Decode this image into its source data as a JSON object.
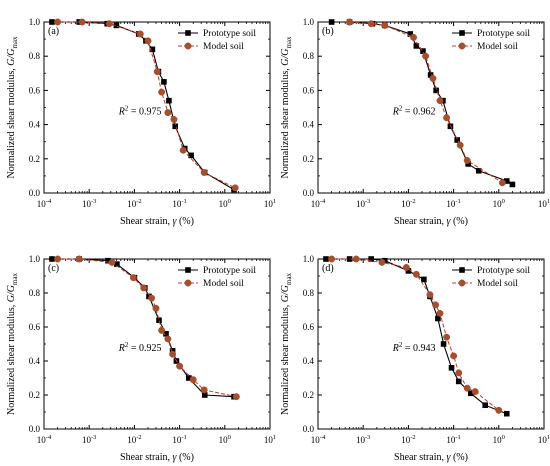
{
  "colors": {
    "prototype": "#000000",
    "model_fill": "#a0522d",
    "model_line": "#c0392b"
  },
  "chart_data": [
    {
      "type": "line",
      "panel_label": "(a)",
      "xscale": "log",
      "xlim": [
        0.0001,
        10
      ],
      "ylim": [
        0,
        1.0
      ],
      "x_ticks": [
        "10",
        "-4",
        "10",
        "-3",
        "10",
        "-2",
        "10",
        "-1",
        "10",
        "0",
        "10",
        "1"
      ],
      "y_ticks": [
        "0.0",
        "0.2",
        "0.4",
        "0.6",
        "0.8",
        "1.0"
      ],
      "xlabel": {
        "main": "Shear strain, ",
        "sym": "γ",
        "unit": " (%)"
      },
      "ylabel": {
        "main": "Normalized shear modulus, ",
        "sym": "G/G",
        "sub": "max"
      },
      "r2": {
        "sym": "R",
        "sup": "2",
        "text": " = 0.975"
      },
      "legend": {
        "position": "top-right",
        "entries": [
          "Prototype soil",
          "Model soil"
        ]
      },
      "series": [
        {
          "name": "Prototype soil",
          "marker": "square",
          "x": [
            0.00015,
            0.0006,
            0.0025,
            0.004,
            0.0125,
            0.018,
            0.025,
            0.034,
            0.045,
            0.058,
            0.08,
            0.13,
            0.18,
            0.36,
            1.6
          ],
          "y": [
            1.0,
            1.0,
            0.99,
            0.98,
            0.93,
            0.89,
            0.84,
            0.71,
            0.65,
            0.54,
            0.39,
            0.26,
            0.22,
            0.12,
            0.02
          ]
        },
        {
          "name": "Model soil",
          "marker": "circle",
          "x": [
            0.0002,
            0.0007,
            0.0028,
            0.0135,
            0.02,
            0.032,
            0.04,
            0.055,
            0.075,
            0.12,
            0.35,
            1.7
          ],
          "y": [
            1.0,
            1.0,
            0.99,
            0.93,
            0.89,
            0.71,
            0.59,
            0.47,
            0.43,
            0.25,
            0.12,
            0.03
          ]
        }
      ]
    },
    {
      "type": "line",
      "panel_label": "(b)",
      "xscale": "log",
      "xlim": [
        0.0001,
        10
      ],
      "ylim": [
        0,
        1.0
      ],
      "x_ticks": [
        "10",
        "-4",
        "10",
        "-3",
        "10",
        "-2",
        "10",
        "-1",
        "10",
        "0",
        "10",
        "1"
      ],
      "y_ticks": [
        "0.0",
        "0.2",
        "0.4",
        "0.6",
        "0.8",
        "1.0"
      ],
      "xlabel": {
        "main": "Shear strain, ",
        "sym": "γ",
        "unit": " (%)"
      },
      "ylabel": {
        "main": "Normalized shear modulus, ",
        "sym": "G/G",
        "sub": "max"
      },
      "r2": {
        "sym": "R",
        "sup": "2",
        "text": " = 0.962"
      },
      "legend": {
        "position": "top-right",
        "entries": [
          "Prototype soil",
          "Model soil"
        ]
      },
      "series": [
        {
          "name": "Prototype soil",
          "marker": "square",
          "x": [
            0.0002,
            0.0005,
            0.0016,
            0.003,
            0.011,
            0.015,
            0.021,
            0.031,
            0.041,
            0.058,
            0.085,
            0.12,
            0.21,
            0.36,
            1.5,
            2.0
          ],
          "y": [
            1.0,
            1.0,
            0.99,
            0.98,
            0.93,
            0.86,
            0.83,
            0.69,
            0.6,
            0.54,
            0.39,
            0.31,
            0.17,
            0.13,
            0.07,
            0.05
          ]
        },
        {
          "name": "Model soil",
          "marker": "circle",
          "x": [
            0.0005,
            0.0015,
            0.003,
            0.013,
            0.024,
            0.035,
            0.05,
            0.07,
            0.14,
            0.2,
            1.2
          ],
          "y": [
            1.0,
            0.99,
            0.98,
            0.91,
            0.8,
            0.67,
            0.54,
            0.44,
            0.28,
            0.19,
            0.06
          ]
        }
      ]
    },
    {
      "type": "line",
      "panel_label": "(c)",
      "xscale": "log",
      "xlim": [
        0.0001,
        10
      ],
      "ylim": [
        0,
        1.0
      ],
      "x_ticks": [
        "10",
        "-4",
        "10",
        "-3",
        "10",
        "-2",
        "10",
        "-1",
        "10",
        "0",
        "10",
        "1"
      ],
      "y_ticks": [
        "0.0",
        "0.2",
        "0.4",
        "0.6",
        "0.8",
        "1.0"
      ],
      "xlabel": {
        "main": "Shear strain, ",
        "sym": "γ",
        "unit": " (%)"
      },
      "ylabel": {
        "main": "Normalized shear modulus, ",
        "sym": "G/G",
        "sub": "max"
      },
      "r2": {
        "sym": "R",
        "sup": "2",
        "text": " = 0.925"
      },
      "legend": {
        "position": "top-right",
        "entries": [
          "Prototype soil",
          "Model soil"
        ]
      },
      "series": [
        {
          "name": "Prototype soil",
          "marker": "square",
          "x": [
            0.00015,
            0.0006,
            0.0026,
            0.0041,
            0.01,
            0.017,
            0.021,
            0.035,
            0.05,
            0.07,
            0.085,
            0.16,
            0.36,
            1.6
          ],
          "y": [
            1.0,
            1.0,
            0.99,
            0.97,
            0.89,
            0.83,
            0.78,
            0.64,
            0.56,
            0.46,
            0.4,
            0.3,
            0.2,
            0.19
          ]
        },
        {
          "name": "Model soil",
          "marker": "circle",
          "x": [
            0.0002,
            0.0006,
            0.0032,
            0.0095,
            0.016,
            0.024,
            0.03,
            0.04,
            0.055,
            0.07,
            0.1,
            0.2,
            0.35,
            1.8
          ],
          "y": [
            1.0,
            1.0,
            0.98,
            0.89,
            0.83,
            0.77,
            0.71,
            0.58,
            0.53,
            0.44,
            0.37,
            0.29,
            0.23,
            0.19
          ]
        }
      ]
    },
    {
      "type": "line",
      "panel_label": "(d)",
      "xscale": "log",
      "xlim": [
        0.0001,
        10
      ],
      "ylim": [
        0,
        1.0
      ],
      "x_ticks": [
        "10",
        "-4",
        "10",
        "-3",
        "10",
        "-2",
        "10",
        "-1",
        "10",
        "0",
        "10",
        "1"
      ],
      "y_ticks": [
        "0.0",
        "0.2",
        "0.4",
        "0.6",
        "0.8",
        "1.0"
      ],
      "xlabel": {
        "main": "Shear strain, ",
        "sym": "γ",
        "unit": " (%)"
      },
      "ylabel": {
        "main": "Normalized shear modulus, ",
        "sym": "G/G",
        "sub": "max"
      },
      "r2": {
        "sym": "R",
        "sup": "2",
        "text": " = 0.943"
      },
      "legend": {
        "position": "top-right",
        "entries": [
          "Prototype soil",
          "Model soil"
        ]
      },
      "series": [
        {
          "name": "Prototype soil",
          "marker": "square",
          "x": [
            0.00015,
            0.0005,
            0.0015,
            0.003,
            0.01,
            0.022,
            0.03,
            0.045,
            0.06,
            0.09,
            0.13,
            0.24,
            0.5,
            1.5
          ],
          "y": [
            1.0,
            1.0,
            1.0,
            0.99,
            0.93,
            0.88,
            0.78,
            0.65,
            0.5,
            0.36,
            0.28,
            0.21,
            0.14,
            0.09
          ]
        },
        {
          "name": "Model soil",
          "marker": "circle",
          "x": [
            0.0002,
            0.0007,
            0.0026,
            0.009,
            0.015,
            0.03,
            0.04,
            0.05,
            0.07,
            0.1,
            0.13,
            0.2,
            0.3,
            1.0
          ],
          "y": [
            1.0,
            1.0,
            0.98,
            0.95,
            0.91,
            0.79,
            0.73,
            0.68,
            0.54,
            0.43,
            0.33,
            0.24,
            0.22,
            0.11
          ]
        }
      ]
    }
  ]
}
